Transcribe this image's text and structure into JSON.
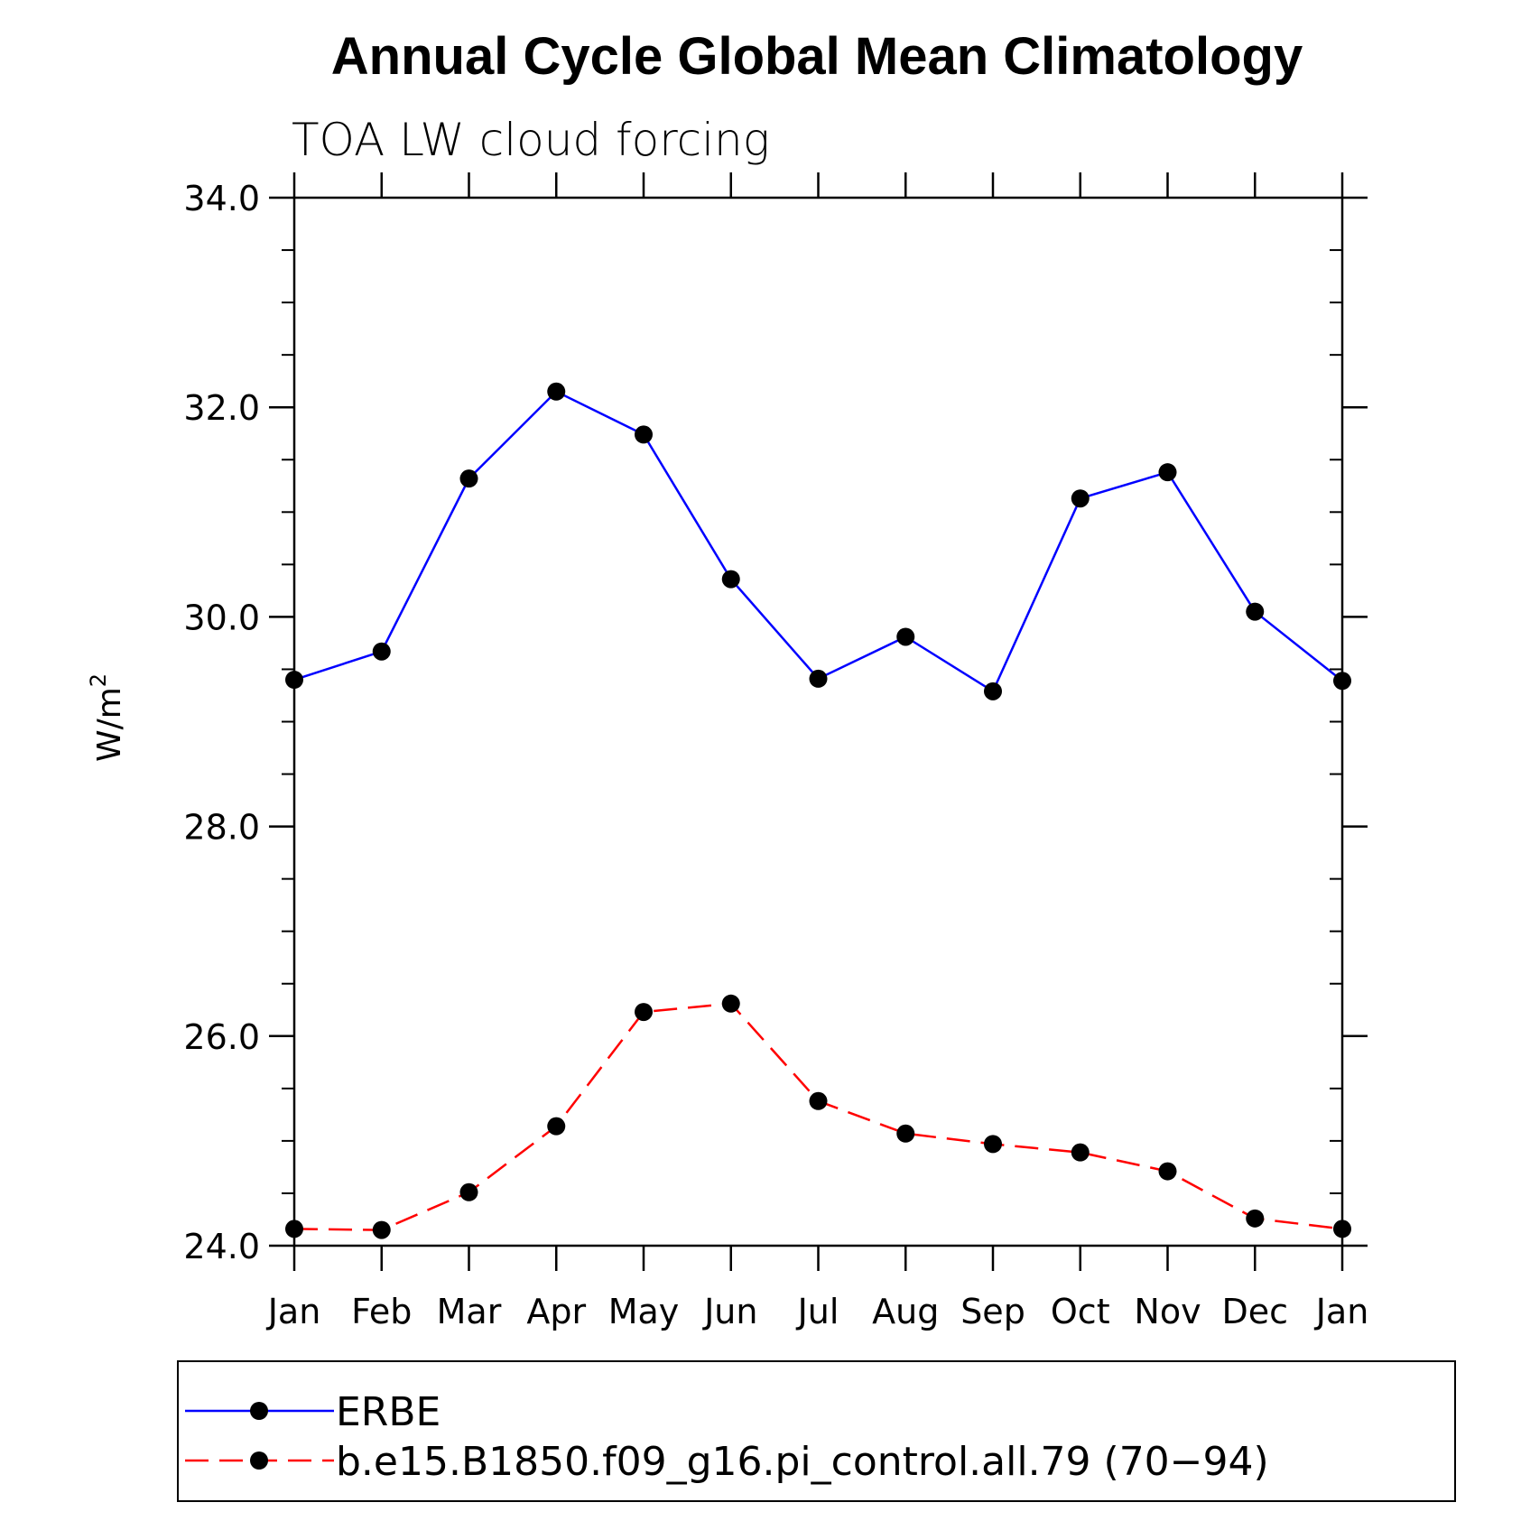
{
  "chart_data": {
    "type": "line",
    "title": "Annual Cycle Global Mean Climatology",
    "subtitle": "TOA LW cloud forcing",
    "ylabel": "W/m",
    "ylabel_superscript": "2",
    "xlabel": "",
    "categories": [
      "Jan",
      "Feb",
      "Mar",
      "Apr",
      "May",
      "Jun",
      "Jul",
      "Aug",
      "Sep",
      "Oct",
      "Nov",
      "Dec",
      "Jan"
    ],
    "ylim": [
      24.0,
      34.0
    ],
    "yticks": [
      "24.0",
      "26.0",
      "28.0",
      "30.0",
      "32.0",
      "34.0"
    ],
    "ytick_values": [
      24,
      26,
      28,
      30,
      32,
      34
    ],
    "minor_tick_step": 0.5,
    "grid": false,
    "legend_position": "bottom",
    "series": [
      {
        "name": "ERBE",
        "color": "#0000ff",
        "line_style": "solid",
        "marker": "filled-circle",
        "values": [
          29.4,
          29.67,
          31.32,
          32.15,
          31.74,
          30.36,
          29.41,
          29.81,
          29.29,
          31.13,
          31.38,
          30.05,
          29.39
        ]
      },
      {
        "name": "b.e15.B1850.f09_g16.pi_control.all.79 (70−94)",
        "color": "#ff0000",
        "line_style": "dashed",
        "marker": "filled-circle",
        "values": [
          24.16,
          24.15,
          24.51,
          25.14,
          26.23,
          26.31,
          25.38,
          25.07,
          24.97,
          24.89,
          24.71,
          24.26,
          24.16
        ]
      }
    ]
  }
}
